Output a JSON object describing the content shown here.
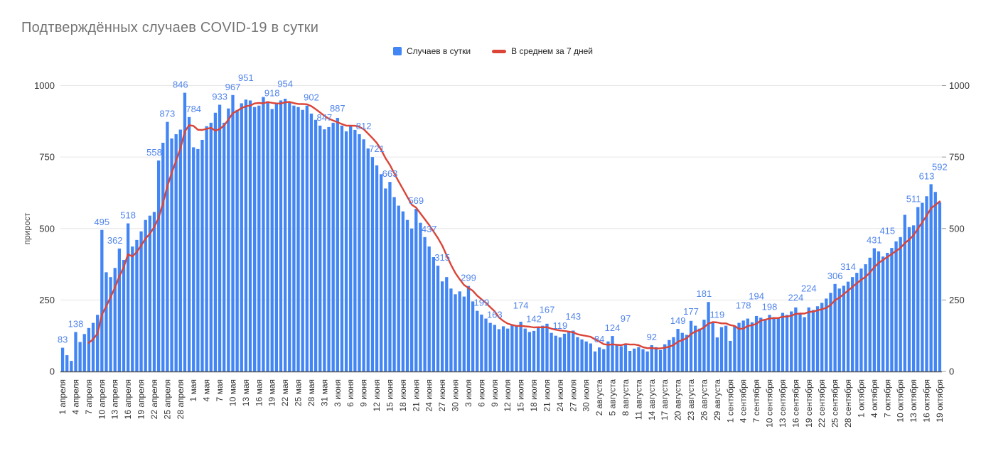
{
  "title": "Подтверждённых случаев COVID-19 в сутки",
  "legend": {
    "items": [
      {
        "label": "Случаев в сутки",
        "marker": "square",
        "color": "#4285f4"
      },
      {
        "label": "В среднем за 7 дней",
        "marker": "line",
        "color": "#db4437"
      }
    ]
  },
  "y_axis": {
    "title": "прирост",
    "tick_labels": [
      "0",
      "250",
      "500",
      "750",
      "1000"
    ],
    "ticks": [
      0,
      250,
      500,
      750,
      1000
    ],
    "max": 1000,
    "shown_on_both_sides": true
  },
  "colors": {
    "bar": "#4285f4",
    "line": "#db4437",
    "annotation_text": "#5185ec",
    "gridline": "#e6e6e6",
    "axis_text": "#333333",
    "baseline": "#555555",
    "title_text": "#757575"
  },
  "chart_data": {
    "type": "bar",
    "title": "Подтверждённых случаев COVID-19 в сутки",
    "xlabel": "",
    "ylabel": "прирост",
    "ylim": [
      0,
      1000
    ],
    "grid": true,
    "legend_position": "top-center",
    "x_tick_every_n_bars": 3,
    "x_tick_labels": [
      "1 апреля",
      "4 апреля",
      "7 апреля",
      "10 апреля",
      "13 апреля",
      "16 апреля",
      "19 апреля",
      "22 апреля",
      "25 апреля",
      "28 апреля",
      "1 мая",
      "4 мая",
      "7 мая",
      "10 мая",
      "13 мая",
      "16 мая",
      "19 мая",
      "22 мая",
      "25 мая",
      "28 мая",
      "31 мая",
      "3 июня",
      "6 июня",
      "9 июня",
      "12 июня",
      "15 июня",
      "18 июня",
      "21 июня",
      "24 июня",
      "27 июня",
      "30 июня",
      "3 июля",
      "6 июля",
      "9 июля",
      "12 июля",
      "15 июля",
      "18 июля",
      "21 июля",
      "24 июля",
      "27 июля",
      "30 июля",
      "2 августа",
      "5 августа",
      "8 августа",
      "11 августа",
      "14 августа",
      "17 августа",
      "20 августа",
      "23 августа",
      "26 августа",
      "29 августа",
      "1 сентября",
      "4 сентября",
      "7 сентября",
      "10 сентября",
      "13 сентября",
      "16 сентября",
      "19 сентября",
      "22 сентября",
      "25 сентября",
      "28 сентября",
      "1 октября",
      "4 октября",
      "7 октября",
      "10 октября",
      "13 октября",
      "16 октября",
      "19 октября"
    ],
    "series": [
      {
        "name": "Случаев в сутки",
        "type": "bar",
        "color": "#4285f4",
        "values": [
          83,
          57,
          37,
          138,
          103,
          131,
          152,
          170,
          198,
          495,
          347,
          330,
          362,
          430,
          390,
          518,
          437,
          460,
          490,
          530,
          545,
          558,
          738,
          800,
          873,
          815,
          830,
          846,
          975,
          890,
          784,
          778,
          810,
          858,
          870,
          905,
          933,
          870,
          920,
          967,
          915,
          938,
          951,
          948,
          925,
          930,
          960,
          945,
          918,
          935,
          948,
          954,
          940,
          930,
          925,
          915,
          930,
          902,
          880,
          860,
          847,
          855,
          870,
          887,
          860,
          840,
          858,
          845,
          830,
          812,
          780,
          750,
          721,
          690,
          640,
          663,
          610,
          580,
          560,
          530,
          500,
          569,
          520,
          470,
          437,
          400,
          370,
          315,
          330,
          290,
          270,
          280,
          262,
          299,
          245,
          212,
          199,
          185,
          170,
          163,
          148,
          158,
          150,
          165,
          160,
          174,
          150,
          138,
          142,
          155,
          160,
          167,
          135,
          125,
          119,
          132,
          138,
          143,
          120,
          112,
          105,
          98,
          70,
          84,
          78,
          105,
          124,
          95,
          88,
          97,
          72,
          80,
          85,
          78,
          70,
          92,
          85,
          75,
          95,
          110,
          120,
          149,
          135,
          128,
          177,
          160,
          150,
          181,
          243,
          170,
          119,
          155,
          160,
          107,
          160,
          170,
          178,
          185,
          172,
          194,
          188,
          180,
          198,
          190,
          185,
          205,
          198,
          210,
          224,
          205,
          190,
          224,
          215,
          228,
          240,
          255,
          275,
          306,
          290,
          300,
          314,
          330,
          345,
          360,
          375,
          398,
          431,
          420,
          402,
          415,
          432,
          455,
          470,
          548,
          505,
          511,
          575,
          590,
          613,
          655,
          628,
          592
        ]
      },
      {
        "name": "В среднем за 7 дней",
        "type": "line",
        "color": "#db4437",
        "derived": "trailing 7-day mean of bar series, drawn from the 7th bar onward"
      }
    ],
    "annotations": [
      {
        "d": 0,
        "v": 83
      },
      {
        "d": 3,
        "v": 138
      },
      {
        "d": 9,
        "v": 495
      },
      {
        "d": 12,
        "v": 362
      },
      {
        "d": 15,
        "v": 518
      },
      {
        "d": 21,
        "v": 558
      },
      {
        "d": 24,
        "v": 873
      },
      {
        "d": 27,
        "v": 846
      },
      {
        "d": 30,
        "v": 784
      },
      {
        "d": 36,
        "v": 933
      },
      {
        "d": 39,
        "v": 967
      },
      {
        "d": 42,
        "v": 951
      },
      {
        "d": 48,
        "v": 918
      },
      {
        "d": 51,
        "v": 954
      },
      {
        "d": 57,
        "v": 902
      },
      {
        "d": 60,
        "v": 847
      },
      {
        "d": 63,
        "v": 887
      },
      {
        "d": 69,
        "v": 812
      },
      {
        "d": 72,
        "v": 721
      },
      {
        "d": 75,
        "v": 663
      },
      {
        "d": 81,
        "v": 569
      },
      {
        "d": 84,
        "v": 437
      },
      {
        "d": 87,
        "v": 315
      },
      {
        "d": 93,
        "v": 299
      },
      {
        "d": 96,
        "v": 199
      },
      {
        "d": 99,
        "v": 163
      },
      {
        "d": 105,
        "v": 174
      },
      {
        "d": 108,
        "v": 142
      },
      {
        "d": 111,
        "v": 167
      },
      {
        "d": 114,
        "v": 119
      },
      {
        "d": 117,
        "v": 143
      },
      {
        "d": 123,
        "v": 84
      },
      {
        "d": 126,
        "v": 124
      },
      {
        "d": 129,
        "v": 97
      },
      {
        "d": 135,
        "v": 92
      },
      {
        "d": 141,
        "v": 149
      },
      {
        "d": 144,
        "v": 177
      },
      {
        "d": 147,
        "v": 181
      },
      {
        "d": 150,
        "v": 119
      },
      {
        "d": 156,
        "v": 178
      },
      {
        "d": 159,
        "v": 194
      },
      {
        "d": 162,
        "v": 198
      },
      {
        "d": 168,
        "v": 224
      },
      {
        "d": 171,
        "v": 224
      },
      {
        "d": 177,
        "v": 306
      },
      {
        "d": 180,
        "v": 314
      },
      {
        "d": 186,
        "v": 431
      },
      {
        "d": 189,
        "v": 415
      },
      {
        "d": 195,
        "v": 511
      },
      {
        "d": 198,
        "v": 613
      },
      {
        "d": 201,
        "v": 592
      }
    ]
  }
}
